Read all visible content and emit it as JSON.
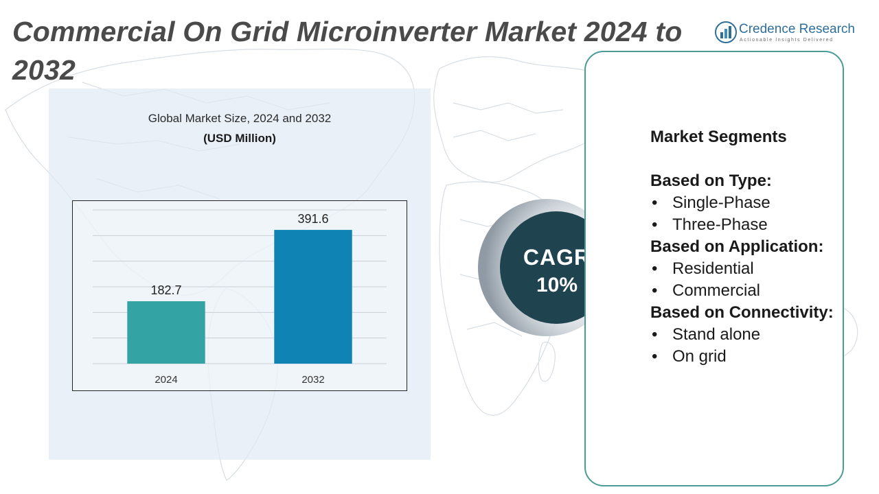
{
  "page": {
    "title": "Commercial On Grid Microinverter Market 2024 to 2032"
  },
  "brand": {
    "name": "Credence Research",
    "tagline": "Actionable Insights Delivered",
    "icon": "bar-chart-globe-icon"
  },
  "chart_data": {
    "type": "bar",
    "title": "Global Market Size, 2024 and 2032",
    "subtitle": "(USD Million)",
    "categories": [
      "2024",
      "2032"
    ],
    "values": [
      182.7,
      391.6
    ],
    "value_labels": [
      "182.7",
      "391.6"
    ],
    "ylim": [
      0,
      450
    ],
    "grid": true,
    "colors": [
      "#33a3a3",
      "#0f84b4"
    ],
    "legend": "none"
  },
  "cagr": {
    "label": "CAGR",
    "value": "10%"
  },
  "segments": {
    "heading": "Market Segments",
    "groups": [
      {
        "title": "Based on Type:",
        "items": [
          "Single-Phase",
          "Three-Phase"
        ]
      },
      {
        "title": "Based on Application:",
        "items": [
          "Residential",
          "Commercial"
        ]
      },
      {
        "title": "Based on Connectivity:",
        "items": [
          "Stand alone",
          "On grid"
        ]
      }
    ]
  },
  "colors": {
    "title_text": "#4a4a4a",
    "panel_bg": "#e0eaf5",
    "cagr_circle": "#1f4450",
    "segments_border": "#4a9a96",
    "brand_text": "#2e6f9a"
  }
}
